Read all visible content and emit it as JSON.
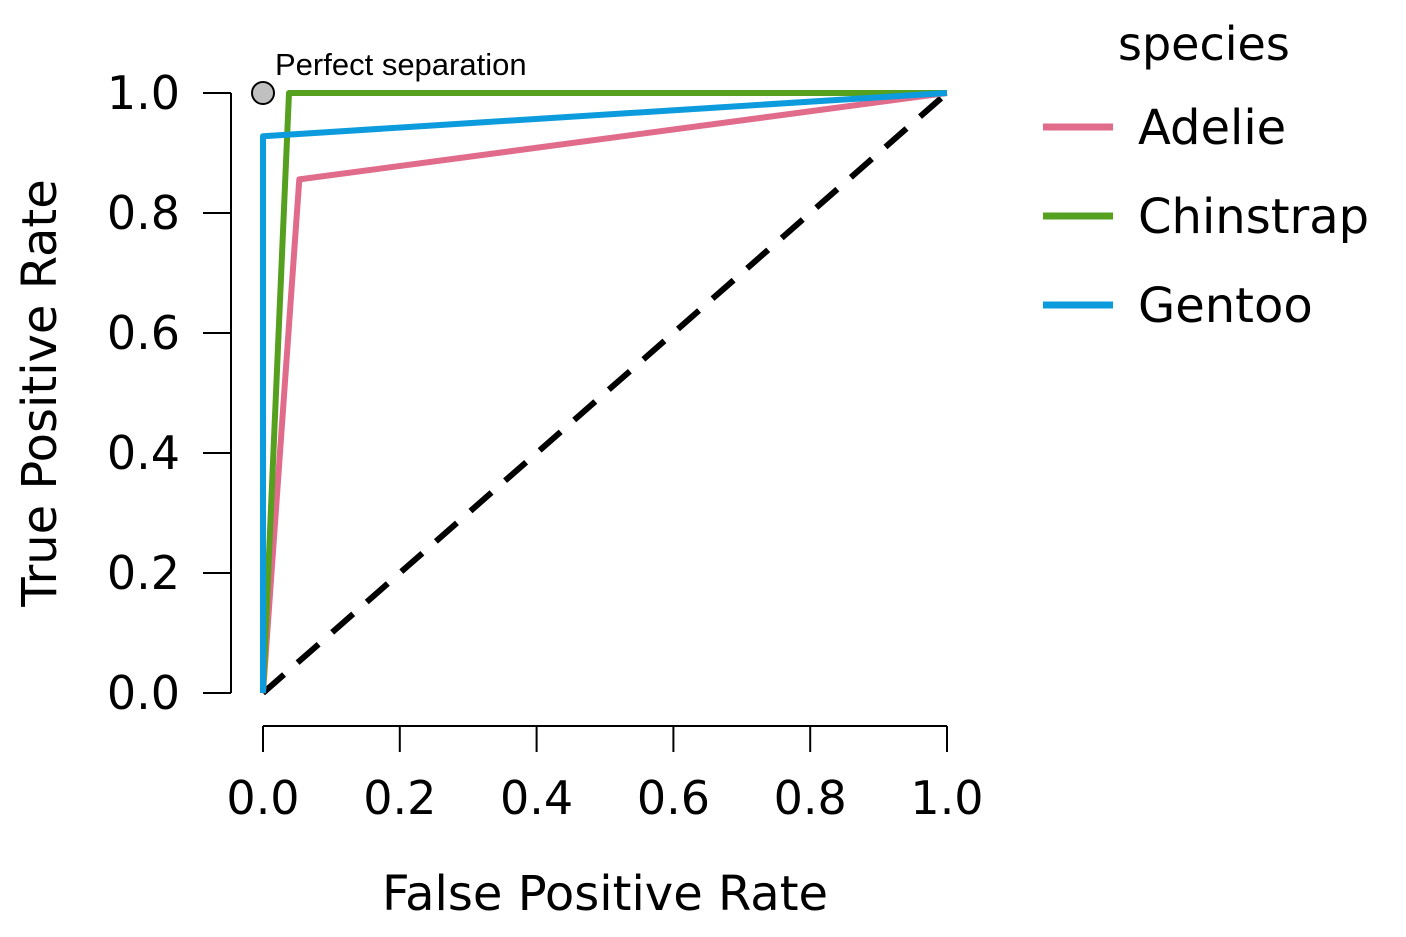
{
  "chart_data": {
    "type": "line",
    "title": "",
    "xlabel": "False Positive Rate",
    "ylabel": "True Positive Rate",
    "xlim": [
      0,
      1
    ],
    "ylim": [
      0,
      1
    ],
    "x_ticks": [
      "0.0",
      "0.2",
      "0.4",
      "0.6",
      "0.8",
      "1.0"
    ],
    "y_ticks": [
      "0.0",
      "0.2",
      "0.4",
      "0.6",
      "0.8",
      "1.0"
    ],
    "grid": false,
    "legend": {
      "title": "species",
      "placement": "right"
    },
    "series": [
      {
        "name": "Adelie",
        "color": "#E06B8B",
        "points": [
          [
            0,
            0
          ],
          [
            0.053,
            0.856
          ],
          [
            1,
            1
          ]
        ]
      },
      {
        "name": "Chinstrap",
        "color": "#55A01E",
        "points": [
          [
            0,
            0
          ],
          [
            0.038,
            1.0
          ],
          [
            1,
            1
          ]
        ]
      },
      {
        "name": "Gentoo",
        "color": "#0C9BDC",
        "points": [
          [
            0,
            0
          ],
          [
            0,
            0.928
          ],
          [
            1,
            1
          ]
        ]
      }
    ],
    "reference_line": {
      "style": "dashed",
      "color": "#000000",
      "points": [
        [
          0,
          0
        ],
        [
          1,
          1
        ]
      ]
    },
    "annotation": {
      "text": "Perfect separation",
      "x": 0,
      "y": 1,
      "marker_color": "#C0C0C0"
    }
  }
}
